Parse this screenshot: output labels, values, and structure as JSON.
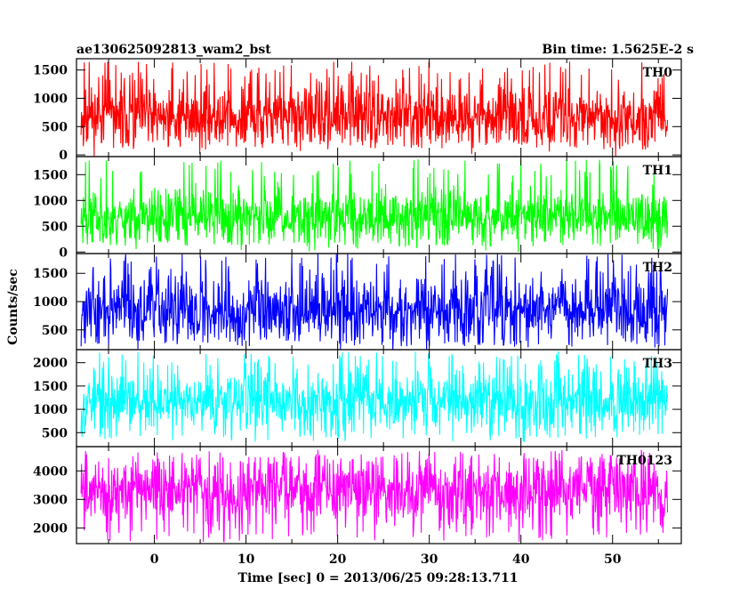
{
  "chart_data": {
    "type": "line",
    "title": "ae130625092813_wam2_bst",
    "subtitle": "Bin time: 1.5625E-2 s",
    "xlabel": "Time [sec] 0 = 2013/06/25 09:28:13.711",
    "ylabel": "Counts/sec",
    "xlim": [
      -8.5,
      57.5
    ],
    "data_x_range": [
      -8,
      56
    ],
    "x_ticks": [
      0,
      10,
      20,
      30,
      40,
      50
    ],
    "grid": false,
    "legend": "none",
    "panels": [
      {
        "name": "TH0",
        "color": "#ff0000",
        "ylim": [
          -30,
          1700
        ],
        "y_ticks": [
          0,
          500,
          1000,
          1500
        ],
        "base": 680,
        "spread": 260,
        "low": 100,
        "high": 1650,
        "seed": 11
      },
      {
        "name": "TH1",
        "color": "#00ff00",
        "ylim": [
          -30,
          1850
        ],
        "y_ticks": [
          0,
          500,
          1000,
          1500
        ],
        "base": 700,
        "spread": 260,
        "low": 100,
        "high": 1800,
        "seed": 23
      },
      {
        "name": "TH2",
        "color": "#0000ff",
        "ylim": [
          150,
          1850
        ],
        "y_ticks": [
          500,
          1000,
          1500
        ],
        "base": 850,
        "spread": 280,
        "low": 200,
        "high": 1850,
        "seed": 37
      },
      {
        "name": "TH3",
        "color": "#00ffff",
        "ylim": [
          200,
          2280
        ],
        "y_ticks": [
          500,
          1000,
          1500,
          2000
        ],
        "base": 1200,
        "spread": 330,
        "low": 300,
        "high": 2250,
        "seed": 53
      },
      {
        "name": "TH0123",
        "color": "#ff00ff",
        "ylim": [
          1450,
          4850
        ],
        "y_ticks": [
          2000,
          3000,
          4000
        ],
        "base": 3300,
        "spread": 550,
        "low": 1500,
        "high": 4750,
        "seed": 71
      }
    ]
  }
}
